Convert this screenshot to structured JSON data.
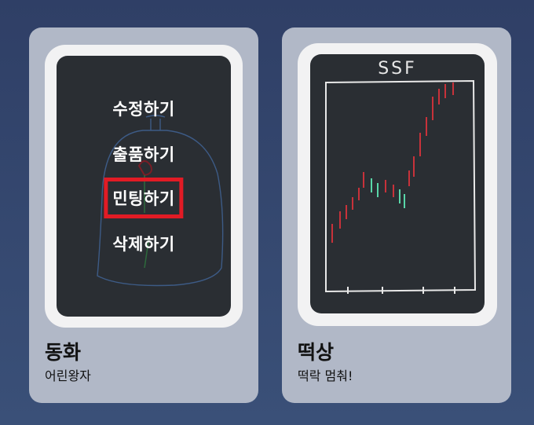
{
  "cards": [
    {
      "title": "동화",
      "subtitle": "어린왕자",
      "menu": [
        "수정하기",
        "출품하기",
        "민팅하기",
        "삭제하기"
      ],
      "selected_menu_index": 2,
      "highlight_color": "#e11b25"
    },
    {
      "title": "떡상",
      "subtitle": "떡락 멈춰!",
      "drawing_label": "SSF",
      "candle_colors": {
        "up": "#c8323a",
        "down": "#59d6a8"
      }
    }
  ],
  "colors": {
    "background": "#34466e",
    "card": "#b1b8c7",
    "frame": "#f2f2f3",
    "canvas": "#2a2e33"
  }
}
